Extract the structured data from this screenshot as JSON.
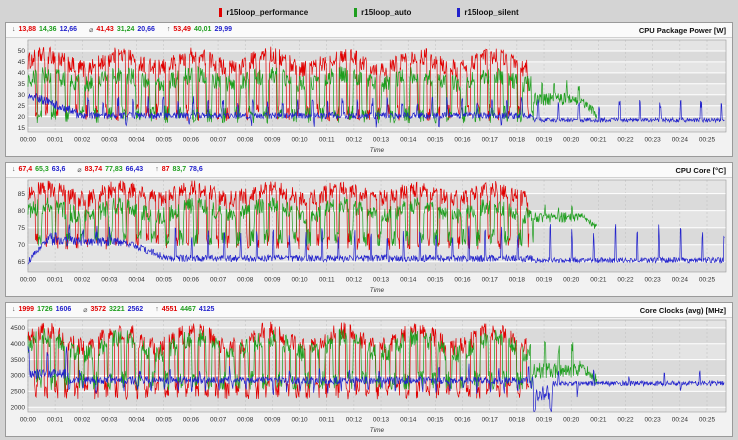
{
  "legend": {
    "items": [
      {
        "label": "r15loop_performance",
        "color": "#e00000"
      },
      {
        "label": "r15loop_auto",
        "color": "#1e9e1e"
      },
      {
        "label": "r15loop_silent",
        "color": "#2222cc"
      }
    ]
  },
  "stat_symbols": {
    "min": "↓",
    "avg": "⌀",
    "max": "↑"
  },
  "x_ticks": [
    "00:00",
    "00:01",
    "00:02",
    "00:03",
    "00:04",
    "00:05",
    "00:06",
    "00:07",
    "00:08",
    "00:09",
    "00:10",
    "00:11",
    "00:12",
    "00:13",
    "00:14",
    "00:15",
    "00:16",
    "00:17",
    "00:18",
    "00:19",
    "00:20",
    "00:21",
    "00:22",
    "00:23",
    "00:24",
    "00:25"
  ],
  "chart_data": [
    {
      "type": "line",
      "title": "CPU Package Power [W]",
      "xlabel": "Time",
      "xlim": [
        0,
        25.7
      ],
      "ylim": [
        13,
        55
      ],
      "y_ticks": [
        15,
        20,
        25,
        30,
        35,
        40,
        45,
        50
      ],
      "stats": {
        "min": [
          "13,88",
          "14,36",
          "12,66"
        ],
        "avg": [
          "41,43",
          "31,24",
          "20,66"
        ],
        "max": [
          "53,49",
          "40,01",
          "29,99"
        ]
      },
      "series": [
        {
          "name": "r15loop_performance",
          "color": "#e00000",
          "end": 18.45,
          "segments": [
            {
              "t0": 0,
              "t1": 18.45,
              "mode": "pulse",
              "period": 0.37,
              "duty": 0.72,
              "high": 45,
              "hvar": 3,
              "low": 22,
              "jit": 4
            }
          ]
        },
        {
          "name": "r15loop_auto",
          "color": "#1e9e1e",
          "end": 20.95,
          "segments": [
            {
              "t0": 0,
              "t1": 18.6,
              "mode": "pulse",
              "period": 0.52,
              "duty": 0.65,
              "high": 37,
              "hvar": 2,
              "low": 21,
              "jit": 4
            },
            {
              "t0": 18.6,
              "t1": 20.3,
              "mode": "level",
              "base": 28,
              "jit": 3,
              "spikes": [
                {
                  "period": 0.45,
                  "width": 0.05,
                  "amp": 8
                }
              ]
            },
            {
              "t0": 20.3,
              "t1": 20.95,
              "mode": "ramp",
              "from": 28,
              "to": 21,
              "jit": 2
            }
          ]
        },
        {
          "name": "r15loop_silent",
          "color": "#2222cc",
          "end": 25.65,
          "segments": [
            {
              "t0": 0,
              "t1": 1.8,
              "mode": "ramp",
              "from": 30,
              "to": 22,
              "jit": 2
            },
            {
              "t0": 1.8,
              "t1": 18.6,
              "mode": "level",
              "base": 20.5,
              "jit": 1.5,
              "spikes": [
                {
                  "period": 0.55,
                  "width": 0.05,
                  "amp": 8
                },
                {
                  "period": 2.3,
                  "width": 0.05,
                  "amp": -5,
                  "phase": 1
                }
              ]
            },
            {
              "t0": 18.6,
              "t1": 25.65,
              "mode": "level",
              "base": 18.5,
              "jit": 1,
              "spikes": [
                {
                  "period": 0.75,
                  "width": 0.05,
                  "amp": 9
                }
              ]
            }
          ]
        }
      ]
    },
    {
      "type": "line",
      "title": "CPU Core [°C]",
      "xlabel": "Time",
      "xlim": [
        0,
        25.7
      ],
      "ylim": [
        62,
        89
      ],
      "y_ticks": [
        65,
        70,
        75,
        80,
        85
      ],
      "stats": {
        "min": [
          "67,4",
          "65,3",
          "63,6"
        ],
        "avg": [
          "83,74",
          "77,83",
          "66,43"
        ],
        "max": [
          "87",
          "83,7",
          "78,6"
        ]
      },
      "series": [
        {
          "name": "r15loop_performance",
          "color": "#e00000",
          "end": 18.45,
          "segments": [
            {
              "t0": 0,
              "t1": 18.45,
              "mode": "pulse",
              "period": 0.37,
              "duty": 0.75,
              "high": 85,
              "hvar": 1.5,
              "low": 71,
              "jit": 2.5
            }
          ]
        },
        {
          "name": "r15loop_auto",
          "color": "#1e9e1e",
          "end": 20.95,
          "segments": [
            {
              "t0": 0,
              "t1": 18.6,
              "mode": "pulse",
              "period": 0.52,
              "duty": 0.7,
              "high": 80,
              "hvar": 1.5,
              "low": 72,
              "jit": 2.5
            },
            {
              "t0": 18.6,
              "t1": 20.3,
              "mode": "level",
              "base": 78,
              "jit": 1.5,
              "spikes": [
                {
                  "period": 0.5,
                  "width": 0.05,
                  "amp": 4
                }
              ]
            },
            {
              "t0": 20.3,
              "t1": 20.95,
              "mode": "ramp",
              "from": 79,
              "to": 75,
              "jit": 1
            }
          ]
        },
        {
          "name": "r15loop_silent",
          "color": "#2222cc",
          "end": 25.65,
          "segments": [
            {
              "t0": 0,
              "t1": 0.9,
              "mode": "ramp",
              "from": 65,
              "to": 73,
              "jit": 1
            },
            {
              "t0": 0.9,
              "t1": 3.5,
              "mode": "level",
              "base": 71,
              "jit": 1.5,
              "spikes": [
                {
                  "period": 0.5,
                  "width": 0.05,
                  "amp": 4
                }
              ]
            },
            {
              "t0": 3.5,
              "t1": 5,
              "mode": "ramp",
              "from": 71,
              "to": 66.5,
              "jit": 1
            },
            {
              "t0": 5,
              "t1": 18.6,
              "mode": "level",
              "base": 66,
              "jit": 1,
              "spikes": [
                {
                  "period": 0.6,
                  "width": 0.05,
                  "amp": 9
                }
              ]
            },
            {
              "t0": 18.6,
              "t1": 25.65,
              "mode": "level",
              "base": 65.5,
              "jit": 0.8,
              "spikes": [
                {
                  "period": 0.8,
                  "width": 0.05,
                  "amp": 10
                }
              ]
            }
          ]
        }
      ]
    },
    {
      "type": "line",
      "title": "Core Clocks (avg) [MHz]",
      "xlabel": "Time",
      "xlim": [
        0,
        25.7
      ],
      "ylim": [
        1850,
        4750
      ],
      "y_ticks": [
        2000,
        2500,
        3000,
        3500,
        4000,
        4500
      ],
      "stats": {
        "min": [
          "1999",
          "1726",
          "1606"
        ],
        "avg": [
          "3572",
          "3221",
          "2562"
        ],
        "max": [
          "4551",
          "4467",
          "4125"
        ]
      },
      "series": [
        {
          "name": "r15loop_performance",
          "color": "#e00000",
          "end": 18.45,
          "segments": [
            {
              "t0": 0,
              "t1": 18.45,
              "mode": "pulse",
              "period": 0.37,
              "duty": 0.6,
              "high": 4150,
              "hvar": 250,
              "low": 2550,
              "jit": 300
            }
          ]
        },
        {
          "name": "r15loop_auto",
          "color": "#1e9e1e",
          "end": 20.95,
          "segments": [
            {
              "t0": 0,
              "t1": 18.6,
              "mode": "pulse",
              "period": 0.52,
              "duty": 0.6,
              "high": 3950,
              "hvar": 250,
              "low": 2850,
              "jit": 300
            },
            {
              "t0": 18.6,
              "t1": 20.3,
              "mode": "level",
              "base": 3150,
              "jit": 250,
              "spikes": [
                {
                  "period": 0.5,
                  "width": 0.06,
                  "amp": 900
                }
              ]
            },
            {
              "t0": 20.3,
              "t1": 20.95,
              "mode": "ramp",
              "from": 3300,
              "to": 2850,
              "jit": 200
            }
          ]
        },
        {
          "name": "r15loop_silent",
          "color": "#2222cc",
          "end": 25.65,
          "segments": [
            {
              "t0": 0,
              "t1": 1.5,
              "mode": "level",
              "base": 3050,
              "jit": 150,
              "spikes": [
                {
                  "period": 0.7,
                  "width": 0.05,
                  "amp": 900
                }
              ]
            },
            {
              "t0": 1.5,
              "t1": 18.6,
              "mode": "level",
              "base": 2850,
              "jit": 120,
              "spikes": [
                {
                  "period": 0.5,
                  "width": 0.05,
                  "amp": -350
                },
                {
                  "period": 1.1,
                  "width": 0.05,
                  "amp": 420,
                  "phase": 0.3
                }
              ]
            },
            {
              "t0": 18.6,
              "t1": 19.3,
              "mode": "level",
              "base": 2450,
              "jit": 250,
              "spikes": [
                {
                  "period": 0.6,
                  "width": 0.08,
                  "amp": -700
                }
              ]
            },
            {
              "t0": 19.3,
              "t1": 25.65,
              "mode": "level",
              "base": 2750,
              "jit": 80,
              "spikes": [
                {
                  "period": 1.3,
                  "width": 0.05,
                  "amp": 480
                },
                {
                  "period": 1.9,
                  "width": 0.05,
                  "amp": -380,
                  "phase": 0.7
                }
              ]
            }
          ]
        }
      ]
    }
  ]
}
